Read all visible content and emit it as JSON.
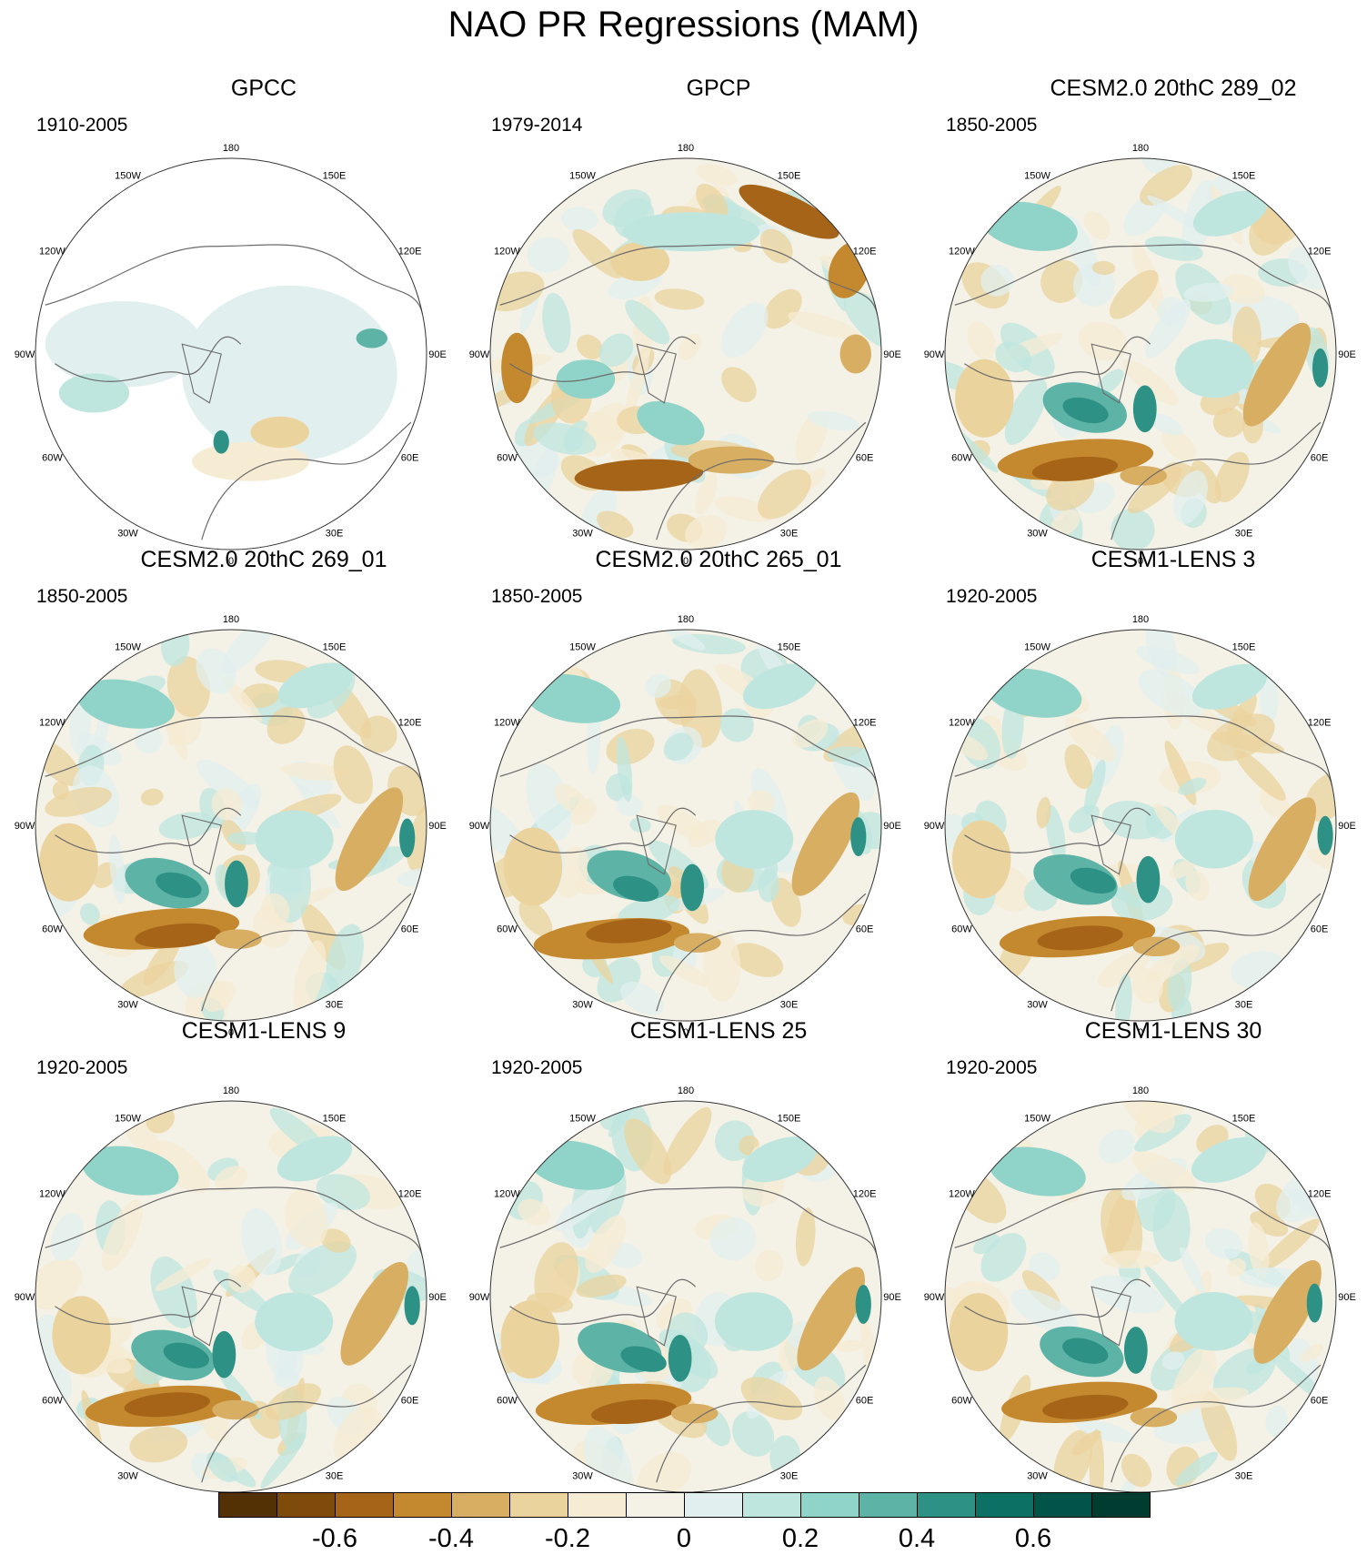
{
  "title": "NAO PR Regressions (MAM)",
  "panels": [
    {
      "name": "GPCC",
      "period": "1910-2005",
      "variant": "obs-masked"
    },
    {
      "name": "GPCP",
      "period": "1979-2014",
      "variant": "obs-full"
    },
    {
      "name": "CESM2.0 20thC 289_02",
      "period": "1850-2005",
      "variant": "model"
    },
    {
      "name": "CESM2.0 20thC 269_01",
      "period": "1850-2005",
      "variant": "model"
    },
    {
      "name": "CESM2.0 20thC 265_01",
      "period": "1850-2005",
      "variant": "model"
    },
    {
      "name": "CESM1-LENS 3",
      "period": "1920-2005",
      "variant": "model"
    },
    {
      "name": "CESM1-LENS 9",
      "period": "1920-2005",
      "variant": "model"
    },
    {
      "name": "CESM1-LENS 25",
      "period": "1920-2005",
      "variant": "model"
    },
    {
      "name": "CESM1-LENS 30",
      "period": "1920-2005",
      "variant": "model"
    }
  ],
  "longitude_labels": [
    {
      "text": "180",
      "lon": 180
    },
    {
      "text": "150E",
      "lon": 150
    },
    {
      "text": "120E",
      "lon": 120
    },
    {
      "text": "90E",
      "lon": 90
    },
    {
      "text": "60E",
      "lon": 60
    },
    {
      "text": "30E",
      "lon": 30
    },
    {
      "text": "0",
      "lon": 0
    },
    {
      "text": "30W",
      "lon": -30
    },
    {
      "text": "60W",
      "lon": -60
    },
    {
      "text": "90W",
      "lon": -90
    },
    {
      "text": "120W",
      "lon": -120
    },
    {
      "text": "150W",
      "lon": -150
    }
  ],
  "colorbar": {
    "colors": [
      "#543005",
      "#7f4b0a",
      "#a66418",
      "#c4882f",
      "#d8ae63",
      "#ebd39e",
      "#f6ebd3",
      "#f4f1e6",
      "#e2efef",
      "#bfe5df",
      "#90d3c8",
      "#5db3a6",
      "#2d9285",
      "#0c7065",
      "#01544a",
      "#003c30"
    ],
    "tick_labels": [
      {
        "text": "-0.6",
        "value": -0.6
      },
      {
        "text": "-0.4",
        "value": -0.4
      },
      {
        "text": "-0.2",
        "value": -0.2
      },
      {
        "text": "0",
        "value": 0
      },
      {
        "text": "0.2",
        "value": 0.2
      },
      {
        "text": "0.4",
        "value": 0.4
      },
      {
        "text": "0.6",
        "value": 0.6
      }
    ],
    "range": [
      -0.8,
      0.8
    ]
  }
}
